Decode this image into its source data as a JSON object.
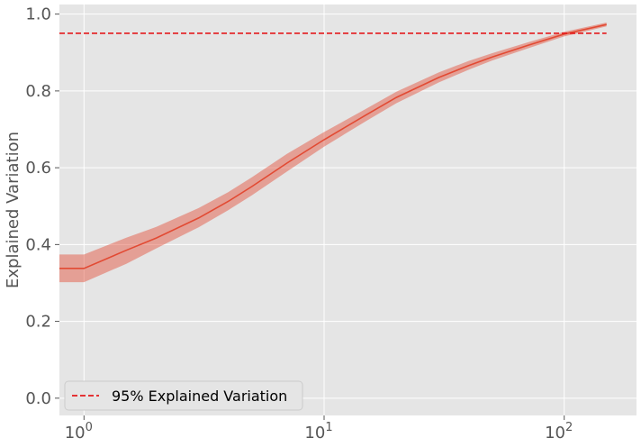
{
  "chart_data": {
    "type": "line",
    "xscale": "log",
    "xlim": [
      0.79,
      200
    ],
    "ylim": [
      -0.045,
      1.025
    ],
    "xticks": [
      {
        "value": 1,
        "base": "10",
        "exp": "0"
      },
      {
        "value": 10,
        "base": "10",
        "exp": "1"
      },
      {
        "value": 100,
        "base": "10",
        "exp": "2"
      }
    ],
    "yticks": [
      {
        "value": 0.0,
        "label": "0.0"
      },
      {
        "value": 0.2,
        "label": "0.2"
      },
      {
        "value": 0.4,
        "label": "0.4"
      },
      {
        "value": 0.6,
        "label": "0.6"
      },
      {
        "value": 0.8,
        "label": "0.8"
      },
      {
        "value": 1.0,
        "label": "1.0"
      }
    ],
    "xlabel": "",
    "ylabel": "Explained Variation",
    "grid": true,
    "legend_position": "lower-left",
    "series": [
      {
        "color": "#e24a33",
        "x": [
          0.79,
          1,
          1.5,
          2,
          3,
          4,
          5,
          7,
          10,
          15,
          20,
          30,
          40,
          50,
          70,
          100,
          150
        ],
        "values": [
          0.338,
          0.338,
          0.385,
          0.417,
          0.469,
          0.513,
          0.551,
          0.612,
          0.673,
          0.738,
          0.783,
          0.835,
          0.866,
          0.888,
          0.918,
          0.948,
          0.973
        ],
        "lower": [
          0.302,
          0.302,
          0.35,
          0.39,
          0.445,
          0.49,
          0.528,
          0.59,
          0.655,
          0.722,
          0.768,
          0.822,
          0.855,
          0.879,
          0.91,
          0.942,
          0.968
        ],
        "upper": [
          0.374,
          0.374,
          0.418,
          0.446,
          0.495,
          0.537,
          0.575,
          0.636,
          0.693,
          0.754,
          0.798,
          0.848,
          0.878,
          0.898,
          0.926,
          0.954,
          0.978
        ]
      }
    ],
    "reference_lines": [
      {
        "type": "hline",
        "value": 0.95,
        "xrange": [
          0.79,
          150
        ],
        "style": "dashed",
        "color": "#e41a1c",
        "label": "95% Explained Variation"
      }
    ]
  }
}
